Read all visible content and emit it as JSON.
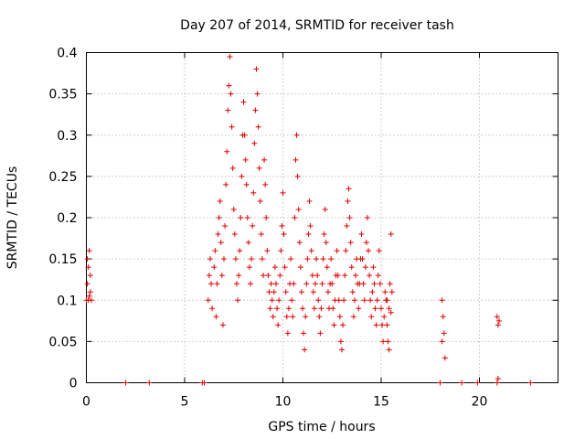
{
  "chart_data": {
    "type": "scatter",
    "title": "Day 207 of 2014, SRMTID for receiver tash",
    "xlabel": "GPS time / hours",
    "ylabel": "SRMTID / TECUs",
    "xlim": [
      0,
      24
    ],
    "ylim": [
      0,
      0.4
    ],
    "grid": true,
    "marker": "+",
    "marker_color": "#e00000",
    "x_ticks": [
      0,
      5,
      10,
      15,
      20
    ],
    "x_tick_labels": [
      "0",
      "5",
      "10",
      "15",
      "20"
    ],
    "y_ticks": [
      0,
      0.05,
      0.1,
      0.15,
      0.2,
      0.25,
      0.3,
      0.35,
      0.4
    ],
    "y_tick_labels": [
      "0",
      "0.05",
      "0.1",
      "0.15",
      "0.2",
      "0.25",
      "0.3",
      "0.35",
      "0.4"
    ],
    "series": [
      {
        "name": "SRMTID",
        "points": [
          [
            0.0,
            0.1
          ],
          [
            0.05,
            0.12
          ],
          [
            0.1,
            0.14
          ],
          [
            0.1,
            0.1
          ],
          [
            0.15,
            0.16
          ],
          [
            0.2,
            0.11
          ],
          [
            0.2,
            0.13
          ],
          [
            0.25,
            0.1
          ],
          [
            0.05,
            0.15
          ],
          [
            0.15,
            0.105
          ],
          [
            2.0,
            0.0
          ],
          [
            3.2,
            0.0
          ],
          [
            5.9,
            0.0
          ],
          [
            6.0,
            0.0
          ],
          [
            6.2,
            0.1
          ],
          [
            6.25,
            0.13
          ],
          [
            6.3,
            0.15
          ],
          [
            6.35,
            0.12
          ],
          [
            6.4,
            0.09
          ],
          [
            6.5,
            0.14
          ],
          [
            6.55,
            0.16
          ],
          [
            6.6,
            0.08
          ],
          [
            6.65,
            0.12
          ],
          [
            6.7,
            0.18
          ],
          [
            6.75,
            0.2
          ],
          [
            6.8,
            0.22
          ],
          [
            6.85,
            0.17
          ],
          [
            6.9,
            0.13
          ],
          [
            6.95,
            0.07
          ],
          [
            7.0,
            0.15
          ],
          [
            7.05,
            0.19
          ],
          [
            7.1,
            0.24
          ],
          [
            7.15,
            0.28
          ],
          [
            7.2,
            0.33
          ],
          [
            7.25,
            0.36
          ],
          [
            7.3,
            0.395
          ],
          [
            7.35,
            0.35
          ],
          [
            7.4,
            0.31
          ],
          [
            7.45,
            0.26
          ],
          [
            7.5,
            0.21
          ],
          [
            7.55,
            0.18
          ],
          [
            7.6,
            0.15
          ],
          [
            7.65,
            0.12
          ],
          [
            7.7,
            0.1
          ],
          [
            7.75,
            0.13
          ],
          [
            7.8,
            0.16
          ],
          [
            7.85,
            0.2
          ],
          [
            7.9,
            0.25
          ],
          [
            7.95,
            0.3
          ],
          [
            8.0,
            0.34
          ],
          [
            8.05,
            0.3
          ],
          [
            8.1,
            0.27
          ],
          [
            8.15,
            0.24
          ],
          [
            8.2,
            0.2
          ],
          [
            8.25,
            0.17
          ],
          [
            8.3,
            0.14
          ],
          [
            8.35,
            0.12
          ],
          [
            8.4,
            0.15
          ],
          [
            8.45,
            0.19
          ],
          [
            8.5,
            0.23
          ],
          [
            8.55,
            0.29
          ],
          [
            8.6,
            0.33
          ],
          [
            8.65,
            0.38
          ],
          [
            8.7,
            0.35
          ],
          [
            8.75,
            0.31
          ],
          [
            8.8,
            0.26
          ],
          [
            8.85,
            0.22
          ],
          [
            8.9,
            0.18
          ],
          [
            8.95,
            0.15
          ],
          [
            9.0,
            0.13
          ],
          [
            9.05,
            0.27
          ],
          [
            9.1,
            0.24
          ],
          [
            9.15,
            0.2
          ],
          [
            9.2,
            0.16
          ],
          [
            9.25,
            0.13
          ],
          [
            9.3,
            0.11
          ],
          [
            9.35,
            0.09
          ],
          [
            9.4,
            0.12
          ],
          [
            9.45,
            0.1
          ],
          [
            9.5,
            0.08
          ],
          [
            9.55,
            0.11
          ],
          [
            9.6,
            0.14
          ],
          [
            9.65,
            0.12
          ],
          [
            9.7,
            0.09
          ],
          [
            9.75,
            0.07
          ],
          [
            9.8,
            0.1
          ],
          [
            9.85,
            0.13
          ],
          [
            9.9,
            0.16
          ],
          [
            9.95,
            0.19
          ],
          [
            10.0,
            0.23
          ],
          [
            10.05,
            0.18
          ],
          [
            10.1,
            0.14
          ],
          [
            10.15,
            0.11
          ],
          [
            10.2,
            0.08
          ],
          [
            10.25,
            0.06
          ],
          [
            10.3,
            0.09
          ],
          [
            10.35,
            0.12
          ],
          [
            10.4,
            0.15
          ],
          [
            10.45,
            0.1
          ],
          [
            10.5,
            0.08
          ],
          [
            10.55,
            0.12
          ],
          [
            10.6,
            0.2
          ],
          [
            10.65,
            0.27
          ],
          [
            10.7,
            0.3
          ],
          [
            10.75,
            0.25
          ],
          [
            10.8,
            0.21
          ],
          [
            10.85,
            0.17
          ],
          [
            10.9,
            0.14
          ],
          [
            10.95,
            0.11
          ],
          [
            11.0,
            0.09
          ],
          [
            11.05,
            0.06
          ],
          [
            11.1,
            0.04
          ],
          [
            11.15,
            0.08
          ],
          [
            11.2,
            0.12
          ],
          [
            11.25,
            0.15
          ],
          [
            11.3,
            0.18
          ],
          [
            11.35,
            0.22
          ],
          [
            11.4,
            0.19
          ],
          [
            11.45,
            0.16
          ],
          [
            11.5,
            0.13
          ],
          [
            11.55,
            0.11
          ],
          [
            11.6,
            0.09
          ],
          [
            11.65,
            0.12
          ],
          [
            11.7,
            0.15
          ],
          [
            11.75,
            0.13
          ],
          [
            11.8,
            0.1
          ],
          [
            11.85,
            0.08
          ],
          [
            11.9,
            0.06
          ],
          [
            11.95,
            0.09
          ],
          [
            12.0,
            0.12
          ],
          [
            12.05,
            0.15
          ],
          [
            12.1,
            0.18
          ],
          [
            12.15,
            0.21
          ],
          [
            12.2,
            0.17
          ],
          [
            12.25,
            0.14
          ],
          [
            12.3,
            0.11
          ],
          [
            12.35,
            0.09
          ],
          [
            12.4,
            0.12
          ],
          [
            12.45,
            0.15
          ],
          [
            12.5,
            0.12
          ],
          [
            12.55,
            0.09
          ],
          [
            12.6,
            0.07
          ],
          [
            12.65,
            0.1
          ],
          [
            12.7,
            0.13
          ],
          [
            12.75,
            0.16
          ],
          [
            12.8,
            0.13
          ],
          [
            12.85,
            0.1
          ],
          [
            12.9,
            0.08
          ],
          [
            12.95,
            0.05
          ],
          [
            13.0,
            0.04
          ],
          [
            13.05,
            0.07
          ],
          [
            13.1,
            0.1
          ],
          [
            13.15,
            0.13
          ],
          [
            13.2,
            0.16
          ],
          [
            13.25,
            0.19
          ],
          [
            13.3,
            0.22
          ],
          [
            13.35,
            0.235
          ],
          [
            13.4,
            0.2
          ],
          [
            13.45,
            0.17
          ],
          [
            13.5,
            0.14
          ],
          [
            13.55,
            0.11
          ],
          [
            13.6,
            0.08
          ],
          [
            13.65,
            0.1
          ],
          [
            13.7,
            0.13
          ],
          [
            13.75,
            0.15
          ],
          [
            13.8,
            0.12
          ],
          [
            13.85,
            0.09
          ],
          [
            13.9,
            0.12
          ],
          [
            13.95,
            0.15
          ],
          [
            14.0,
            0.18
          ],
          [
            14.05,
            0.15
          ],
          [
            14.1,
            0.12
          ],
          [
            14.15,
            0.1
          ],
          [
            14.2,
            0.14
          ],
          [
            14.25,
            0.17
          ],
          [
            14.3,
            0.2
          ],
          [
            14.35,
            0.16
          ],
          [
            14.4,
            0.13
          ],
          [
            14.45,
            0.1
          ],
          [
            14.5,
            0.08
          ],
          [
            14.55,
            0.11
          ],
          [
            14.6,
            0.14
          ],
          [
            14.65,
            0.12
          ],
          [
            14.7,
            0.09
          ],
          [
            14.75,
            0.07
          ],
          [
            14.8,
            0.1
          ],
          [
            14.85,
            0.13
          ],
          [
            14.9,
            0.16
          ],
          [
            14.95,
            0.12
          ],
          [
            15.0,
            0.09
          ],
          [
            15.05,
            0.07
          ],
          [
            15.1,
            0.05
          ],
          [
            15.15,
            0.08
          ],
          [
            15.2,
            0.11
          ],
          [
            15.25,
            0.1
          ],
          [
            15.3,
            0.07
          ],
          [
            15.35,
            0.05
          ],
          [
            15.4,
            0.09
          ],
          [
            15.45,
            0.12
          ],
          [
            15.5,
            0.18
          ],
          [
            15.55,
            0.11
          ],
          [
            15.4,
            0.04
          ],
          [
            15.3,
            0.1
          ],
          [
            15.5,
            0.085
          ],
          [
            18.1,
            0.1
          ],
          [
            18.15,
            0.08
          ],
          [
            18.2,
            0.06
          ],
          [
            18.25,
            0.03
          ],
          [
            18.1,
            0.05
          ],
          [
            18.0,
            0.0
          ],
          [
            19.1,
            0.0
          ],
          [
            19.9,
            0.0
          ],
          [
            20.9,
            0.08
          ],
          [
            20.95,
            0.07
          ],
          [
            21.0,
            0.075
          ],
          [
            20.95,
            0.005
          ],
          [
            20.9,
            0.0
          ],
          [
            22.6,
            0.0
          ]
        ]
      }
    ]
  }
}
